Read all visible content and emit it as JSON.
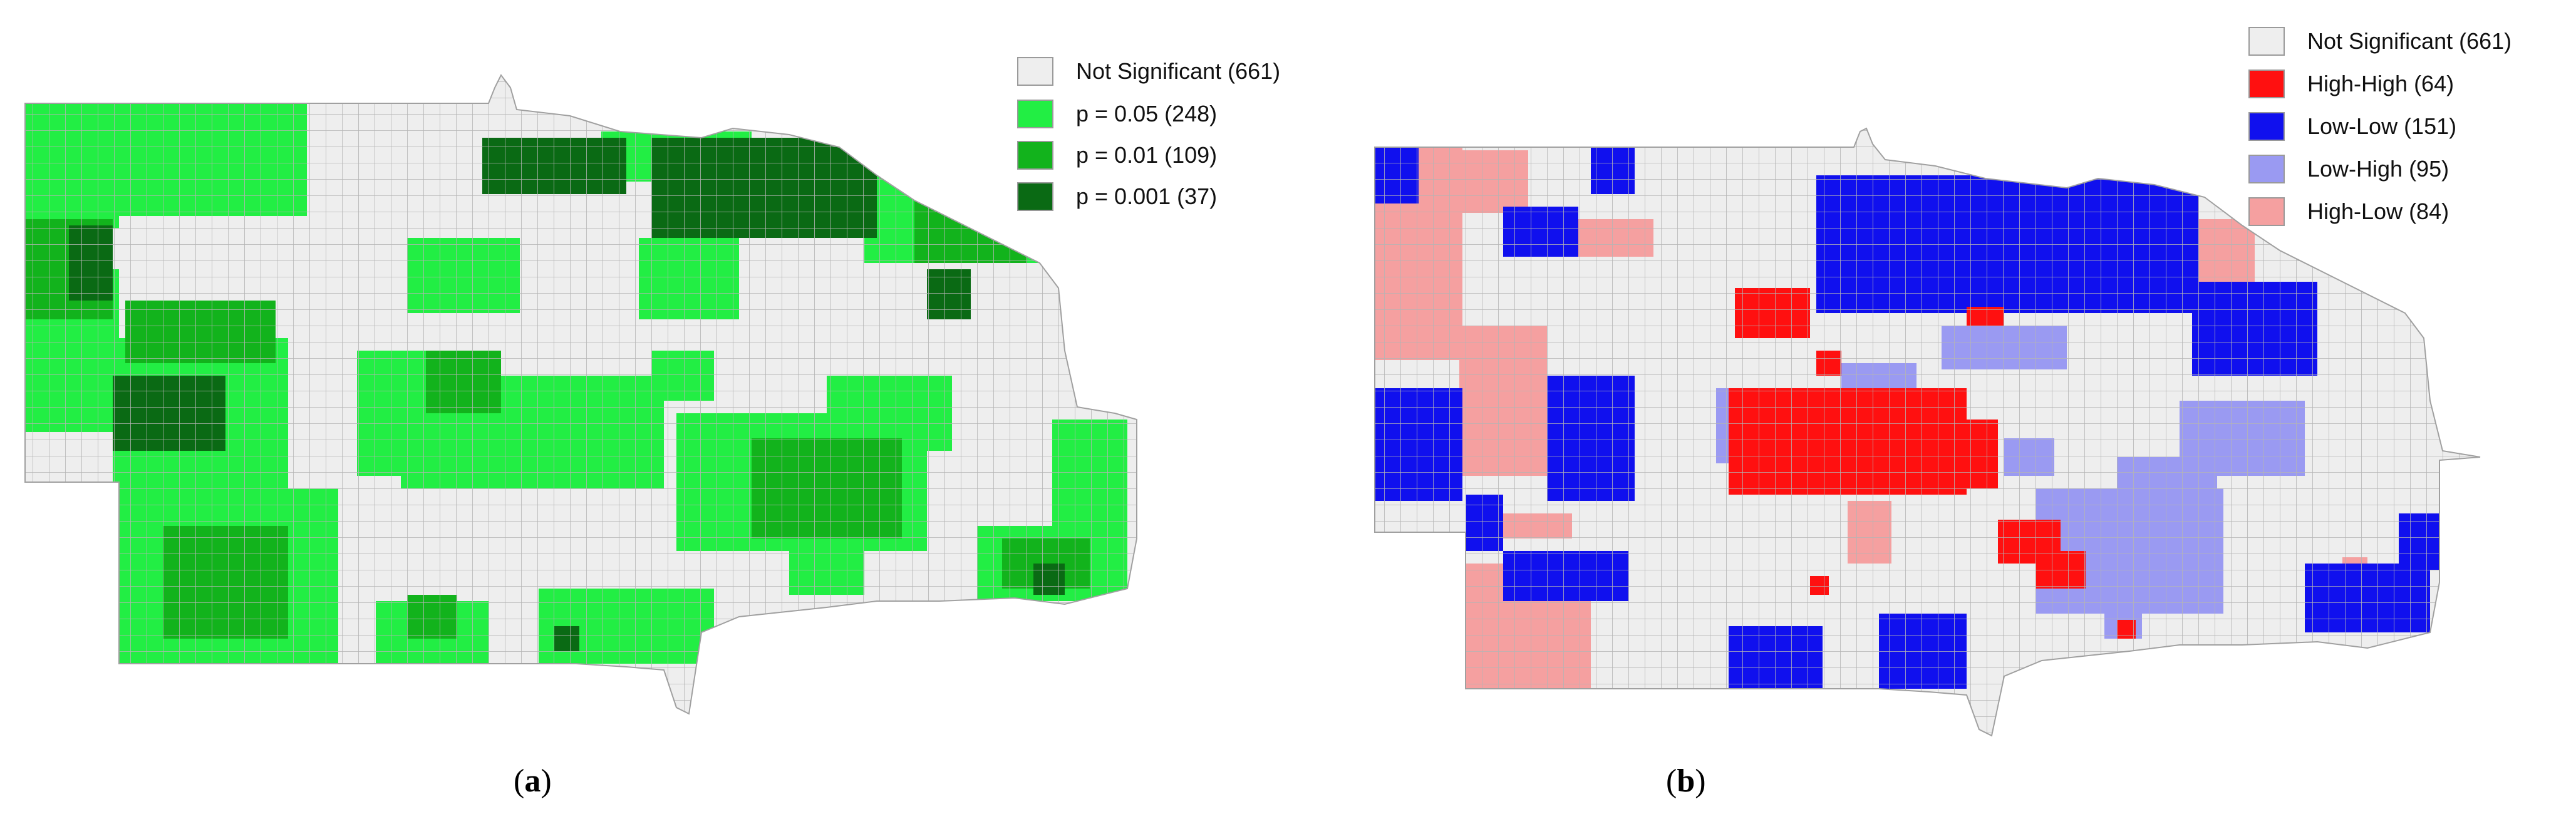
{
  "panels": [
    {
      "caption_open": "(",
      "caption_letter": "a",
      "caption_close": ")",
      "legend": [
        {
          "label": "Not Significant (661)",
          "color": "#eeeeee"
        },
        {
          "label": "p = 0.05 (248)",
          "color": "#22ee44"
        },
        {
          "label": "p = 0.01 (109)",
          "color": "#12b31c"
        },
        {
          "label": "p = 0.001 (37)",
          "color": "#0a6a14"
        }
      ]
    },
    {
      "caption_open": "(",
      "caption_letter": "b",
      "caption_close": ")",
      "legend": [
        {
          "label": "Not Significant (661)",
          "color": "#eeeeee"
        },
        {
          "label": "High-High (64)",
          "color": "#ff1010"
        },
        {
          "label": "Low-Low (151)",
          "color": "#1010ee"
        },
        {
          "label": "Low-High (95)",
          "color": "#9a9af2"
        },
        {
          "label": "High-Low (84)",
          "color": "#f5a0a0"
        }
      ]
    }
  ],
  "colors": {
    "map_base": "#eeeeee",
    "county_line": "#b4b4b4"
  }
}
